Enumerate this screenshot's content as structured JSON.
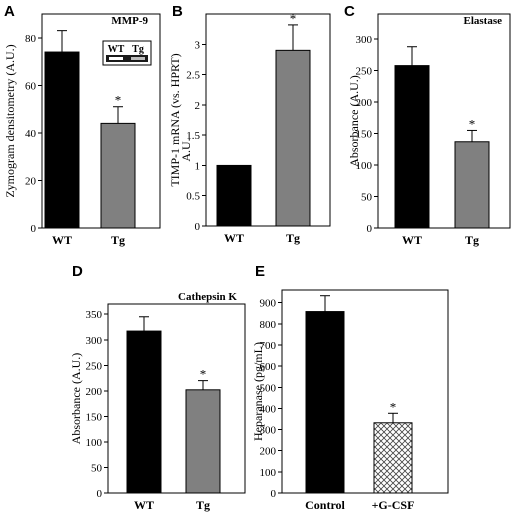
{
  "chart_data": [
    {
      "type": "bar",
      "panel": "A",
      "title": "MMP-9",
      "ylabel": "Zymogram densitometry (A.U.)",
      "xlabel": "",
      "categories": [
        "WT",
        "Tg"
      ],
      "values": [
        74,
        44
      ],
      "errors": [
        9,
        7
      ],
      "significance": [
        "",
        "*"
      ],
      "colors": [
        "#000000",
        "#808080"
      ],
      "patterns": [
        "",
        ""
      ],
      "ylim": [
        0,
        90
      ],
      "yticks": [
        0,
        20,
        40,
        60,
        80
      ],
      "inset_labels": [
        "WT",
        "Tg"
      ]
    },
    {
      "type": "bar",
      "panel": "B",
      "title": "",
      "ylabel": "TIMP-1 mRNA (vs. HPRT)",
      "ylabel2": "A.U.",
      "xlabel": "",
      "categories": [
        "WT",
        "Tg"
      ],
      "values": [
        1.0,
        2.9
      ],
      "errors": [
        0,
        0.42
      ],
      "significance": [
        "",
        "*"
      ],
      "colors": [
        "#000000",
        "#808080"
      ],
      "patterns": [
        "",
        ""
      ],
      "ylim": [
        0,
        3.5
      ],
      "yticks": [
        "0",
        "0.5",
        "1",
        "1.5",
        "2",
        "2.5",
        "3"
      ],
      "ytick_values": [
        0,
        0.5,
        1,
        1.5,
        2,
        2.5,
        3
      ]
    },
    {
      "type": "bar",
      "panel": "C",
      "title": "Elastase",
      "ylabel": "Absorbance (A.U.)",
      "xlabel": "",
      "categories": [
        "WT",
        "Tg"
      ],
      "values": [
        258,
        137
      ],
      "errors": [
        30,
        18
      ],
      "significance": [
        "",
        "*"
      ],
      "colors": [
        "#000000",
        "#808080"
      ],
      "patterns": [
        "",
        ""
      ],
      "ylim": [
        0,
        340
      ],
      "yticks": [
        0,
        50,
        100,
        150,
        200,
        250,
        300
      ]
    },
    {
      "type": "bar",
      "panel": "D",
      "title": "Cathepsin K",
      "ylabel": "Absorbance (A.U.)",
      "xlabel": "",
      "categories": [
        "WT",
        "Tg"
      ],
      "values": [
        317,
        202
      ],
      "errors": [
        28,
        18
      ],
      "significance": [
        "",
        "*"
      ],
      "colors": [
        "#000000",
        "#808080"
      ],
      "patterns": [
        "",
        ""
      ],
      "ylim": [
        0,
        370
      ],
      "yticks": [
        0,
        50,
        100,
        150,
        200,
        250,
        300,
        350
      ]
    },
    {
      "type": "bar",
      "panel": "E",
      "title": "",
      "ylabel": "Heparanase (pg/mL)",
      "xlabel": "",
      "categories": [
        "Control",
        "+G-CSF"
      ],
      "values": [
        858,
        332
      ],
      "errors": [
        75,
        45
      ],
      "significance": [
        "",
        "*"
      ],
      "colors": [
        "#000000",
        "#ffffff"
      ],
      "patterns": [
        "",
        "crosshatch"
      ],
      "ylim": [
        0,
        960
      ],
      "yticks": [
        0,
        100,
        200,
        300,
        400,
        500,
        600,
        700,
        800,
        900
      ]
    }
  ]
}
